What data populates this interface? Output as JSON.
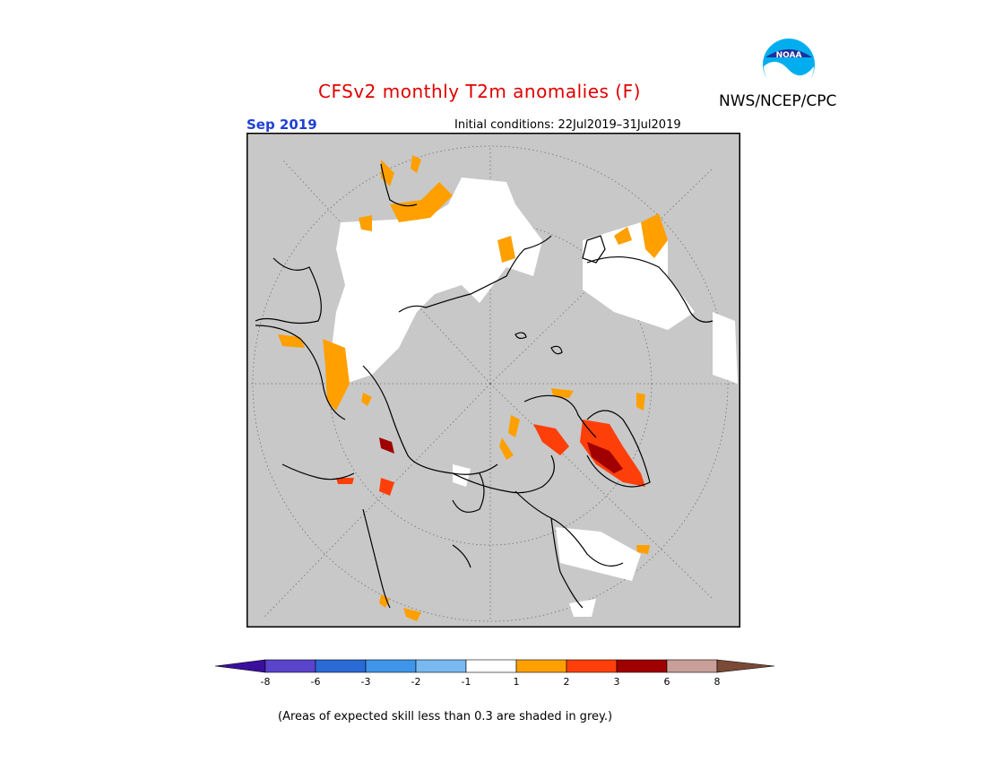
{
  "header": {
    "title": "CFSv2 monthly T2m anomalies (F)",
    "agency": "NWS/NCEP/CPC",
    "logo_text": "NOAA",
    "month": "Sep 2019",
    "initial_conditions": "Initial conditions: 22Jul2019–31Jul2019"
  },
  "map": {
    "projection": "north polar stereographic",
    "background_color": "#c8c8c8",
    "gridlines": "dotted"
  },
  "legend": {
    "colors": [
      "#3a0f9e",
      "#5a44cc",
      "#2a6ad6",
      "#3f95ea",
      "#79b8f0",
      "#ffffff",
      "#ffa000",
      "#ff3f0a",
      "#a00000",
      "#c8a097",
      "#7a4a36"
    ],
    "tick_labels": [
      "-8",
      "-6",
      "-3",
      "-2",
      "-1",
      "1",
      "2",
      "3",
      "6",
      "8"
    ]
  },
  "footnote": "(Areas of expected skill less than 0.3 are shaded in grey.)"
}
